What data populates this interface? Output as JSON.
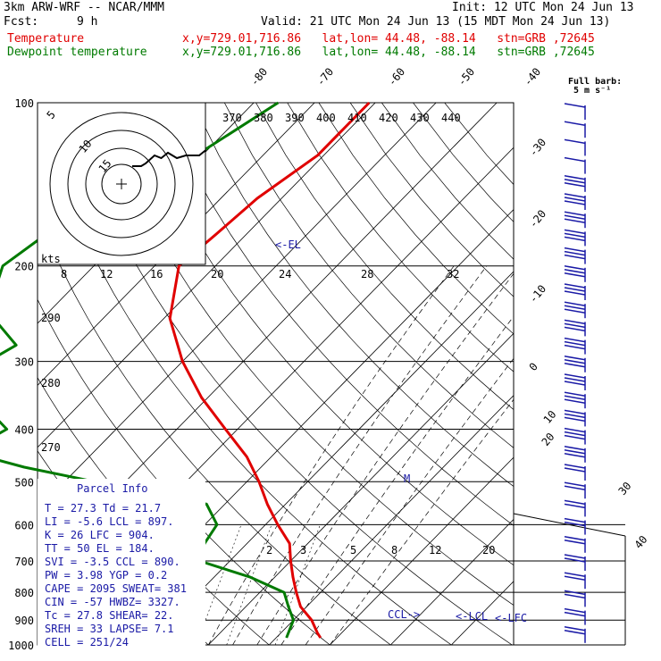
{
  "header": {
    "model": "3km ARW-WRF -- NCAR/MMM",
    "init": "Init: 12 UTC Mon 24 Jun 13",
    "fcst_label": "Fcst:",
    "fcst_value": "9 h",
    "valid": "Valid: 21 UTC Mon 24 Jun 13 (15 MDT Mon 24 Jun 13)",
    "temp_label": "Temperature",
    "temp_info": "x,y=729.01,716.86   lat,lon= 44.48, -88.14   stn=GRB ,72645",
    "dew_label": "Dewpoint temperature",
    "dew_info": "x,y=729.01,716.86   lat,lon= 44.48, -88.14   stn=GRB ,72645",
    "barb_title_1": "Full barb:",
    "barb_title_2": "5 m s⁻¹"
  },
  "colors": {
    "temperature": "#e00000",
    "dewpoint": "#007a00",
    "annot": "#1a1aa6"
  },
  "chart_data": {
    "type": "line",
    "pressure_labels": [
      "100",
      "200",
      "300",
      "400",
      "500",
      "600",
      "700",
      "800",
      "900",
      "1000"
    ],
    "temp_skew_labels": [
      "-80",
      "-70",
      "-60",
      "-50",
      "-40",
      "-30",
      "-20",
      "-10",
      "0",
      "10",
      "20",
      "30",
      "40"
    ],
    "theta_labels": [
      "370",
      "380",
      "390",
      "400",
      "410",
      "420",
      "430",
      "440"
    ],
    "theta_side_labels": [
      "290",
      "280",
      "270"
    ],
    "hodo_speed_labels": [
      "8",
      "12",
      "16",
      "20",
      "24",
      "28",
      "32"
    ],
    "hodo_ring_labels": [
      "5",
      "10",
      "15"
    ],
    "hodo_units": "kts",
    "mixing_ratio_labels": [
      "2",
      "3",
      "5",
      "8",
      "12",
      "20"
    ],
    "annotations": {
      "el": "<-EL",
      "m": "M",
      "ccl": "CCL->",
      "lcl": "<-LCL",
      "lfc": "<-LFC"
    },
    "series": [
      {
        "name": "Temperature",
        "points": [
          [
            100,
            -51
          ],
          [
            125,
            -51
          ],
          [
            150,
            -54
          ],
          [
            175,
            -55
          ],
          [
            200,
            -56
          ],
          [
            250,
            -49
          ],
          [
            300,
            -40
          ],
          [
            350,
            -31
          ],
          [
            400,
            -22
          ],
          [
            450,
            -14
          ],
          [
            500,
            -8
          ],
          [
            550,
            -3
          ],
          [
            600,
            2
          ],
          [
            650,
            7
          ],
          [
            700,
            10
          ],
          [
            750,
            13
          ],
          [
            800,
            16
          ],
          [
            850,
            19
          ],
          [
            900,
            23
          ],
          [
            950,
            26
          ],
          [
            970,
            27.3
          ]
        ]
      },
      {
        "name": "Dewpoint temperature",
        "points": [
          [
            100,
            -66
          ],
          [
            125,
            -71
          ],
          [
            150,
            -77
          ],
          [
            175,
            -83
          ],
          [
            200,
            -85
          ],
          [
            225,
            -82
          ],
          [
            250,
            -78
          ],
          [
            280,
            -70
          ],
          [
            300,
            -72
          ],
          [
            325,
            -68
          ],
          [
            350,
            -68
          ],
          [
            400,
            -58
          ],
          [
            440,
            -61
          ],
          [
            470,
            -49
          ],
          [
            500,
            -35
          ],
          [
            550,
            -13
          ],
          [
            600,
            -8
          ],
          [
            650,
            -7
          ],
          [
            700,
            -5
          ],
          [
            750,
            6
          ],
          [
            800,
            14
          ],
          [
            850,
            17
          ],
          [
            900,
            20
          ],
          [
            970,
            21.7
          ]
        ]
      }
    ],
    "hodograph": {
      "u_kt": [
        0,
        4,
        6,
        10,
        13,
        16,
        20,
        24,
        30,
        33
      ],
      "v_kt": [
        0,
        0,
        1,
        4,
        3,
        5,
        3,
        4,
        4,
        6
      ]
    },
    "wind_barbs_count": 30
  },
  "parcel_info": {
    "title": "Parcel Info",
    "rows": [
      "T  =   27.3 Td =  21.7",
      "LI =   -5.6 LCL =  897.",
      "K  =     26 LFC =  904.",
      "TT =     50 EL  =  184.",
      "SVI =  -3.5 CCL =  890.",
      "PW =   3.98 YGP =   0.2",
      "CAPE =  2095 SWEAT=  381",
      "CIN =   -57 HWBZ= 3327.",
      "Tc =   27.8 SHEAR=  22.",
      "SREH =   33 LAPSE=  7.1",
      "CELL = 251/24"
    ]
  }
}
